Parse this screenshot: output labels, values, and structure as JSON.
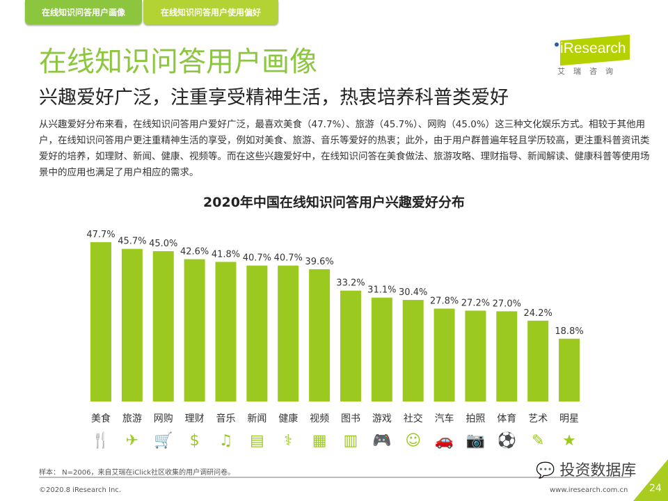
{
  "tabs": [
    "在线知识问答用户画像",
    "在线知识问答用户使用偏好"
  ],
  "title": "在线知识问答用户画像",
  "subtitle": "兴趣爱好广泛，注重享受精神生活，热衷培养科普类爱好",
  "logo": {
    "text": "iResearch",
    "cn": "艾瑞咨询"
  },
  "body": "从兴趣爱好分布来看，在线知识问答用户爱好广泛，最喜欢美食（47.7%）、旅游（45.7%）、网购（45.0%）这三种文化娱乐方式。相较于其他用户，在线知识问答用户更注重精神生活的享受，例如对美食、旅游、音乐等爱好的热衷；此外，由于用户群普遍年轻且学历较高，更注重科普资讯类爱好的培养，如理财、新闻、健康、视频等。而在这些兴趣爱好中，在线知识问答在美食做法、旅游攻略、理财指导、新闻解读、健康科普等使用场景中的应用也满足了用户相应的需求。",
  "chart_data": {
    "type": "bar",
    "title": "2020年中国在线知识问答用户兴趣爱好分布",
    "categories": [
      "美食",
      "旅游",
      "网购",
      "理财",
      "音乐",
      "新闻",
      "健康",
      "视频",
      "图书",
      "游戏",
      "社交",
      "汽车",
      "拍照",
      "体育",
      "艺术",
      "明星"
    ],
    "values": [
      47.7,
      45.7,
      45.0,
      42.6,
      41.8,
      40.7,
      40.7,
      39.6,
      33.2,
      31.1,
      30.4,
      27.8,
      27.2,
      27.0,
      24.2,
      18.8
    ],
    "unit": "%",
    "ylim": [
      0,
      50
    ],
    "grid": false,
    "legend": "none",
    "color": "#9bc91f",
    "icons": [
      "food-icon",
      "plane-icon",
      "cart-icon",
      "money-icon",
      "music-icon",
      "news-icon",
      "health-icon",
      "video-icon",
      "book-icon",
      "gamepad-icon",
      "social-icon",
      "car-icon",
      "camera-icon",
      "ball-icon",
      "art-icon",
      "star-icon"
    ]
  },
  "note": "样本：  N=2006，来自艾瑞在iClick社区收集的用户调研问卷。",
  "copyright": "©2020.8 iResearch Inc.",
  "url": "www.iresearch.com.cn",
  "watermark": "投资数据库",
  "page": "24"
}
